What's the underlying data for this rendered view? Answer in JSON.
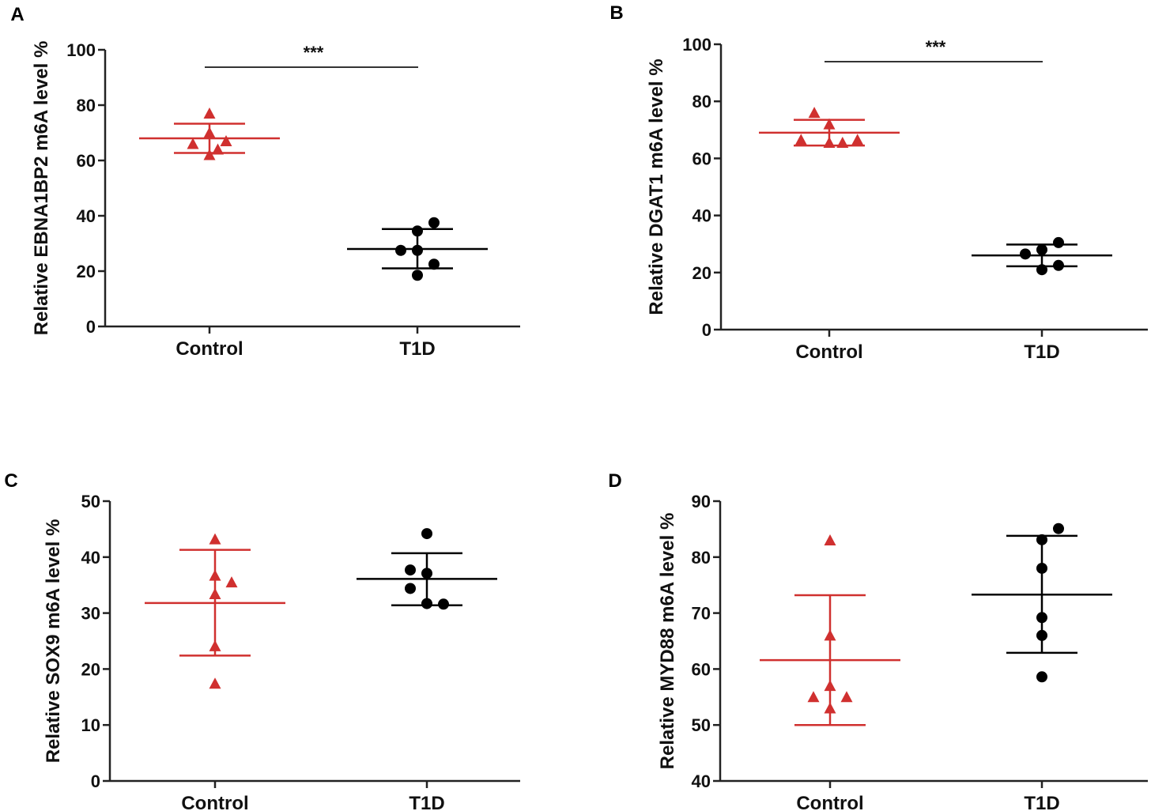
{
  "colors": {
    "control": "#d0302f",
    "t1d": "#000000",
    "axis": "#222222",
    "sig_line": "#333333"
  },
  "chart_data": [
    {
      "panel": "A",
      "type": "scatter",
      "ylabel": "Relative EBNA1BP2 m6A level %",
      "categories": [
        "Control",
        "T1D"
      ],
      "ylim": [
        0,
        100
      ],
      "yticks": [
        0,
        20,
        40,
        60,
        80,
        100
      ],
      "significance": "***",
      "series": [
        {
          "name": "Control",
          "marker": "triangle",
          "color": "#d0302f",
          "values": [
            77,
            70,
            67,
            66,
            64,
            62
          ],
          "offsets": [
            0,
            0,
            1,
            -1,
            0.5,
            0
          ],
          "mean": 68,
          "sd_upper": 73.3,
          "sd_lower": 62.7
        },
        {
          "name": "T1D",
          "marker": "circle",
          "color": "#000000",
          "values": [
            37.5,
            34.5,
            27.5,
            27.5,
            22.5,
            18.5
          ],
          "offsets": [
            1,
            0,
            -1,
            0,
            1,
            0
          ],
          "mean": 28,
          "sd_upper": 35.2,
          "sd_lower": 21
        }
      ]
    },
    {
      "panel": "B",
      "type": "scatter",
      "ylabel": "Relative DGAT1 m6A level %",
      "categories": [
        "Control",
        "T1D"
      ],
      "ylim": [
        0,
        100
      ],
      "yticks": [
        0,
        20,
        40,
        60,
        80,
        100
      ],
      "significance": "***",
      "series": [
        {
          "name": "Control",
          "marker": "triangle",
          "color": "#d0302f",
          "values": [
            76,
            72,
            66.5,
            66.5,
            65.5,
            65.5
          ],
          "offsets": [
            -0.9,
            0,
            1.7,
            -1.7,
            0.8,
            0
          ],
          "mean": 69,
          "sd_upper": 73.5,
          "sd_lower": 64.5
        },
        {
          "name": "T1D",
          "marker": "circle",
          "color": "#000000",
          "values": [
            30.5,
            28,
            26.5,
            22.5,
            21
          ],
          "offsets": [
            1,
            0,
            -1,
            1,
            0
          ],
          "mean": 26,
          "sd_upper": 29.8,
          "sd_lower": 22.2
        }
      ]
    },
    {
      "panel": "C",
      "type": "scatter",
      "ylabel": "Relative SOX9 m6A level %",
      "categories": [
        "Control",
        "T1D"
      ],
      "ylim": [
        0,
        50
      ],
      "yticks": [
        0,
        10,
        20,
        30,
        40,
        50
      ],
      "significance": "",
      "series": [
        {
          "name": "Control",
          "marker": "triangle",
          "color": "#d0302f",
          "values": [
            43.2,
            36.7,
            35.5,
            33.4,
            24.1,
            17.4
          ],
          "offsets": [
            0,
            0,
            1,
            0,
            0,
            0
          ],
          "mean": 31.8,
          "sd_upper": 41.3,
          "sd_lower": 22.4
        },
        {
          "name": "T1D",
          "marker": "circle",
          "color": "#000000",
          "values": [
            44.2,
            37.7,
            37.1,
            34.4,
            31.7,
            31.6
          ],
          "offsets": [
            0,
            -1,
            0,
            -1,
            0,
            1
          ],
          "mean": 36.1,
          "sd_upper": 40.7,
          "sd_lower": 31.4
        }
      ]
    },
    {
      "panel": "D",
      "type": "scatter",
      "ylabel": "Relative MYD88 m6A level %",
      "categories": [
        "Control",
        "T1D"
      ],
      "ylim": [
        40,
        90
      ],
      "yticks": [
        40,
        50,
        60,
        70,
        80,
        90
      ],
      "significance": "",
      "series": [
        {
          "name": "Control",
          "marker": "triangle",
          "color": "#d0302f",
          "values": [
            83,
            66,
            57,
            55,
            55,
            53
          ],
          "offsets": [
            0,
            0,
            0,
            -1,
            1,
            0
          ],
          "mean": 61.6,
          "sd_upper": 73.2,
          "sd_lower": 50
        },
        {
          "name": "T1D",
          "marker": "circle",
          "color": "#000000",
          "values": [
            85.1,
            83.1,
            78,
            69.2,
            66,
            58.6
          ],
          "offsets": [
            1,
            0,
            0,
            0,
            0,
            0
          ],
          "mean": 73.3,
          "sd_upper": 83.8,
          "sd_lower": 62.9
        }
      ]
    }
  ]
}
